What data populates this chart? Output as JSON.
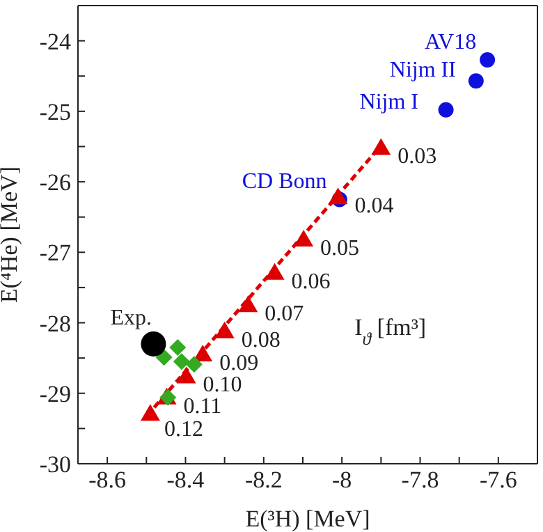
{
  "chart_data": {
    "type": "scatter",
    "xlabel": "E(³H) [MeV]",
    "ylabel": "E(⁴He) [MeV]",
    "xlim": [
      -8.675,
      -7.5
    ],
    "ylim": [
      -30,
      -23.5
    ],
    "xticks": [
      -8.6,
      {
        "value": -8.5,
        "label": null
      },
      {
        "value": -8.4,
        "label": "-8.4"
      },
      {
        "value": -8.3,
        "label": null
      },
      {
        "value": -8.2,
        "label": "-8.2"
      },
      {
        "value": -8.1,
        "label": null
      },
      -8,
      {
        "value": -7.9,
        "label": null
      },
      {
        "value": -7.8,
        "label": "-7.8"
      },
      {
        "value": -7.7,
        "label": null
      },
      {
        "value": -7.6,
        "label": "-7.6"
      }
    ],
    "yticks": [
      -30,
      {
        "value": -29.5,
        "label": null
      },
      -29,
      {
        "value": -28.5,
        "label": null
      },
      -28,
      {
        "value": -27.5,
        "label": null
      },
      -27,
      {
        "value": -26.5,
        "label": null
      },
      -26,
      {
        "value": -25.5,
        "label": null
      },
      -25,
      {
        "value": -24.5,
        "label": null
      },
      -24
    ],
    "series": [
      {
        "type": "line",
        "color": "#dd0000",
        "line_style": "dashed",
        "marker": "none",
        "x": [
          -8.48,
          -7.91
        ],
        "values": [
          -29.2,
          -25.55
        ]
      },
      {
        "color": "#1010dd",
        "marker": "circle",
        "x": [
          -7.628,
          -7.657,
          -7.734,
          -8.006
        ],
        "values": [
          -24.27,
          -24.57,
          -24.98,
          -26.25
        ]
      },
      {
        "color": "#dd0000",
        "marker": "triangle",
        "x": [
          -7.9,
          -8.01,
          -8.098,
          -8.172,
          -8.24,
          -8.3,
          -8.356,
          -8.398,
          -8.448,
          -8.49
        ],
        "values": [
          -25.52,
          -26.22,
          -26.82,
          -27.29,
          -27.75,
          -28.12,
          -28.45,
          -28.76,
          -29.06,
          -29.29
        ]
      },
      {
        "color": "#33aa22",
        "marker": "diamond",
        "x": [
          -8.42,
          -8.455,
          -8.41,
          -8.378,
          -8.445
        ],
        "values": [
          -28.35,
          -28.49,
          -28.55,
          -28.59,
          -29.06
        ]
      },
      {
        "color": "#000000",
        "marker": "circle",
        "x": [
          -8.482
        ],
        "values": [
          -28.3
        ]
      }
    ],
    "annotations": [
      {
        "text": "AV18",
        "x": -7.628,
        "y": -24.27
      },
      {
        "text": "Nijm II",
        "x": -7.657,
        "y": -24.57
      },
      {
        "text": "Nijm I",
        "x": -7.734,
        "y": -24.98
      },
      {
        "text": "CD Bonn",
        "x": -8.006,
        "y": -26.25
      },
      {
        "text": "0.03",
        "x": -7.9,
        "y": -25.52
      },
      {
        "text": "0.04",
        "x": -8.01,
        "y": -26.22
      },
      {
        "text": "0.05",
        "x": -8.098,
        "y": -26.82
      },
      {
        "text": "0.06",
        "x": -8.172,
        "y": -27.29
      },
      {
        "text": "0.07",
        "x": -8.24,
        "y": -27.75
      },
      {
        "text": "0.08",
        "x": -8.3,
        "y": -28.12
      },
      {
        "text": "0.09",
        "x": -8.356,
        "y": -28.45
      },
      {
        "text": "0.10",
        "x": -8.398,
        "y": -28.76
      },
      {
        "text": "0.11",
        "x": -8.448,
        "y": -29.06
      },
      {
        "text": "0.12",
        "x": -8.49,
        "y": -29.29
      },
      {
        "text": "Exp.",
        "x": -8.482,
        "y": -28.3
      },
      "I$_{ϑ}$ [fm³]"
    ]
  }
}
